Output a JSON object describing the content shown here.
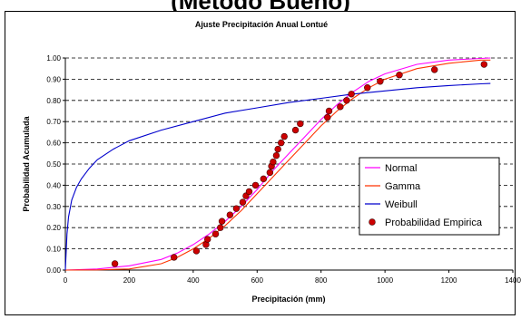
{
  "page": {
    "cropped_title": "(Metodo Bueno)"
  },
  "chart_data": {
    "type": "line",
    "title": "Ajuste Precipitación Anual Lontué",
    "xlabel": "Precipitación (mm)",
    "ylabel": "Probabilidad Acumulada",
    "xlim": [
      0,
      1400
    ],
    "ylim": [
      0,
      1.0
    ],
    "xticks": [
      "0",
      "200",
      "400",
      "600",
      "800",
      "1000",
      "1200",
      "1400"
    ],
    "yticks": [
      "0.00",
      "0.10",
      "0.20",
      "0.30",
      "0.40",
      "0.50",
      "0.60",
      "0.70",
      "0.80",
      "0.90",
      "1.00"
    ],
    "grid": "horizontal dashed",
    "legend_position": "right",
    "series": [
      {
        "name": "Normal",
        "type": "line",
        "color": "#ff00ff",
        "x": [
          0,
          100,
          200,
          300,
          350,
          400,
          450,
          500,
          550,
          600,
          650,
          700,
          750,
          800,
          850,
          900,
          950,
          1000,
          1100,
          1200,
          1300,
          1330
        ],
        "y": [
          0.0,
          0.005,
          0.02,
          0.05,
          0.08,
          0.12,
          0.17,
          0.23,
          0.3,
          0.38,
          0.47,
          0.55,
          0.63,
          0.71,
          0.78,
          0.84,
          0.89,
          0.925,
          0.97,
          0.99,
          0.998,
          1.0
        ]
      },
      {
        "name": "Gamma",
        "type": "line",
        "color": "#ff3300",
        "x": [
          0,
          100,
          200,
          300,
          350,
          400,
          450,
          500,
          550,
          600,
          650,
          700,
          750,
          800,
          850,
          900,
          950,
          1000,
          1100,
          1200,
          1300,
          1330
        ],
        "y": [
          0.0,
          0.001,
          0.005,
          0.03,
          0.06,
          0.1,
          0.15,
          0.21,
          0.28,
          0.36,
          0.44,
          0.52,
          0.6,
          0.68,
          0.75,
          0.81,
          0.86,
          0.9,
          0.95,
          0.975,
          0.99,
          0.99
        ]
      },
      {
        "name": "Weibull",
        "type": "line",
        "color": "#0000cc",
        "x": [
          0,
          5,
          10,
          20,
          35,
          50,
          75,
          100,
          150,
          200,
          300,
          400,
          500,
          600,
          700,
          800,
          900,
          1000,
          1100,
          1200,
          1300,
          1330
        ],
        "y": [
          0.0,
          0.17,
          0.25,
          0.33,
          0.39,
          0.43,
          0.48,
          0.52,
          0.57,
          0.61,
          0.66,
          0.7,
          0.74,
          0.765,
          0.79,
          0.81,
          0.83,
          0.845,
          0.86,
          0.87,
          0.878,
          0.88
        ]
      },
      {
        "name": "Probabilidad Empirica",
        "type": "scatter",
        "color": "#cc0000",
        "x": [
          155,
          340,
          410,
          440,
          445,
          470,
          485,
          490,
          515,
          535,
          555,
          565,
          575,
          595,
          620,
          640,
          645,
          650,
          660,
          665,
          675,
          685,
          720,
          735,
          820,
          825,
          860,
          880,
          895,
          945,
          985,
          1045,
          1155,
          1310
        ],
        "y": [
          0.03,
          0.06,
          0.09,
          0.12,
          0.145,
          0.17,
          0.2,
          0.23,
          0.26,
          0.29,
          0.32,
          0.35,
          0.37,
          0.4,
          0.43,
          0.46,
          0.49,
          0.51,
          0.54,
          0.57,
          0.6,
          0.63,
          0.66,
          0.69,
          0.72,
          0.75,
          0.77,
          0.8,
          0.83,
          0.86,
          0.89,
          0.92,
          0.945,
          0.97
        ]
      }
    ]
  }
}
